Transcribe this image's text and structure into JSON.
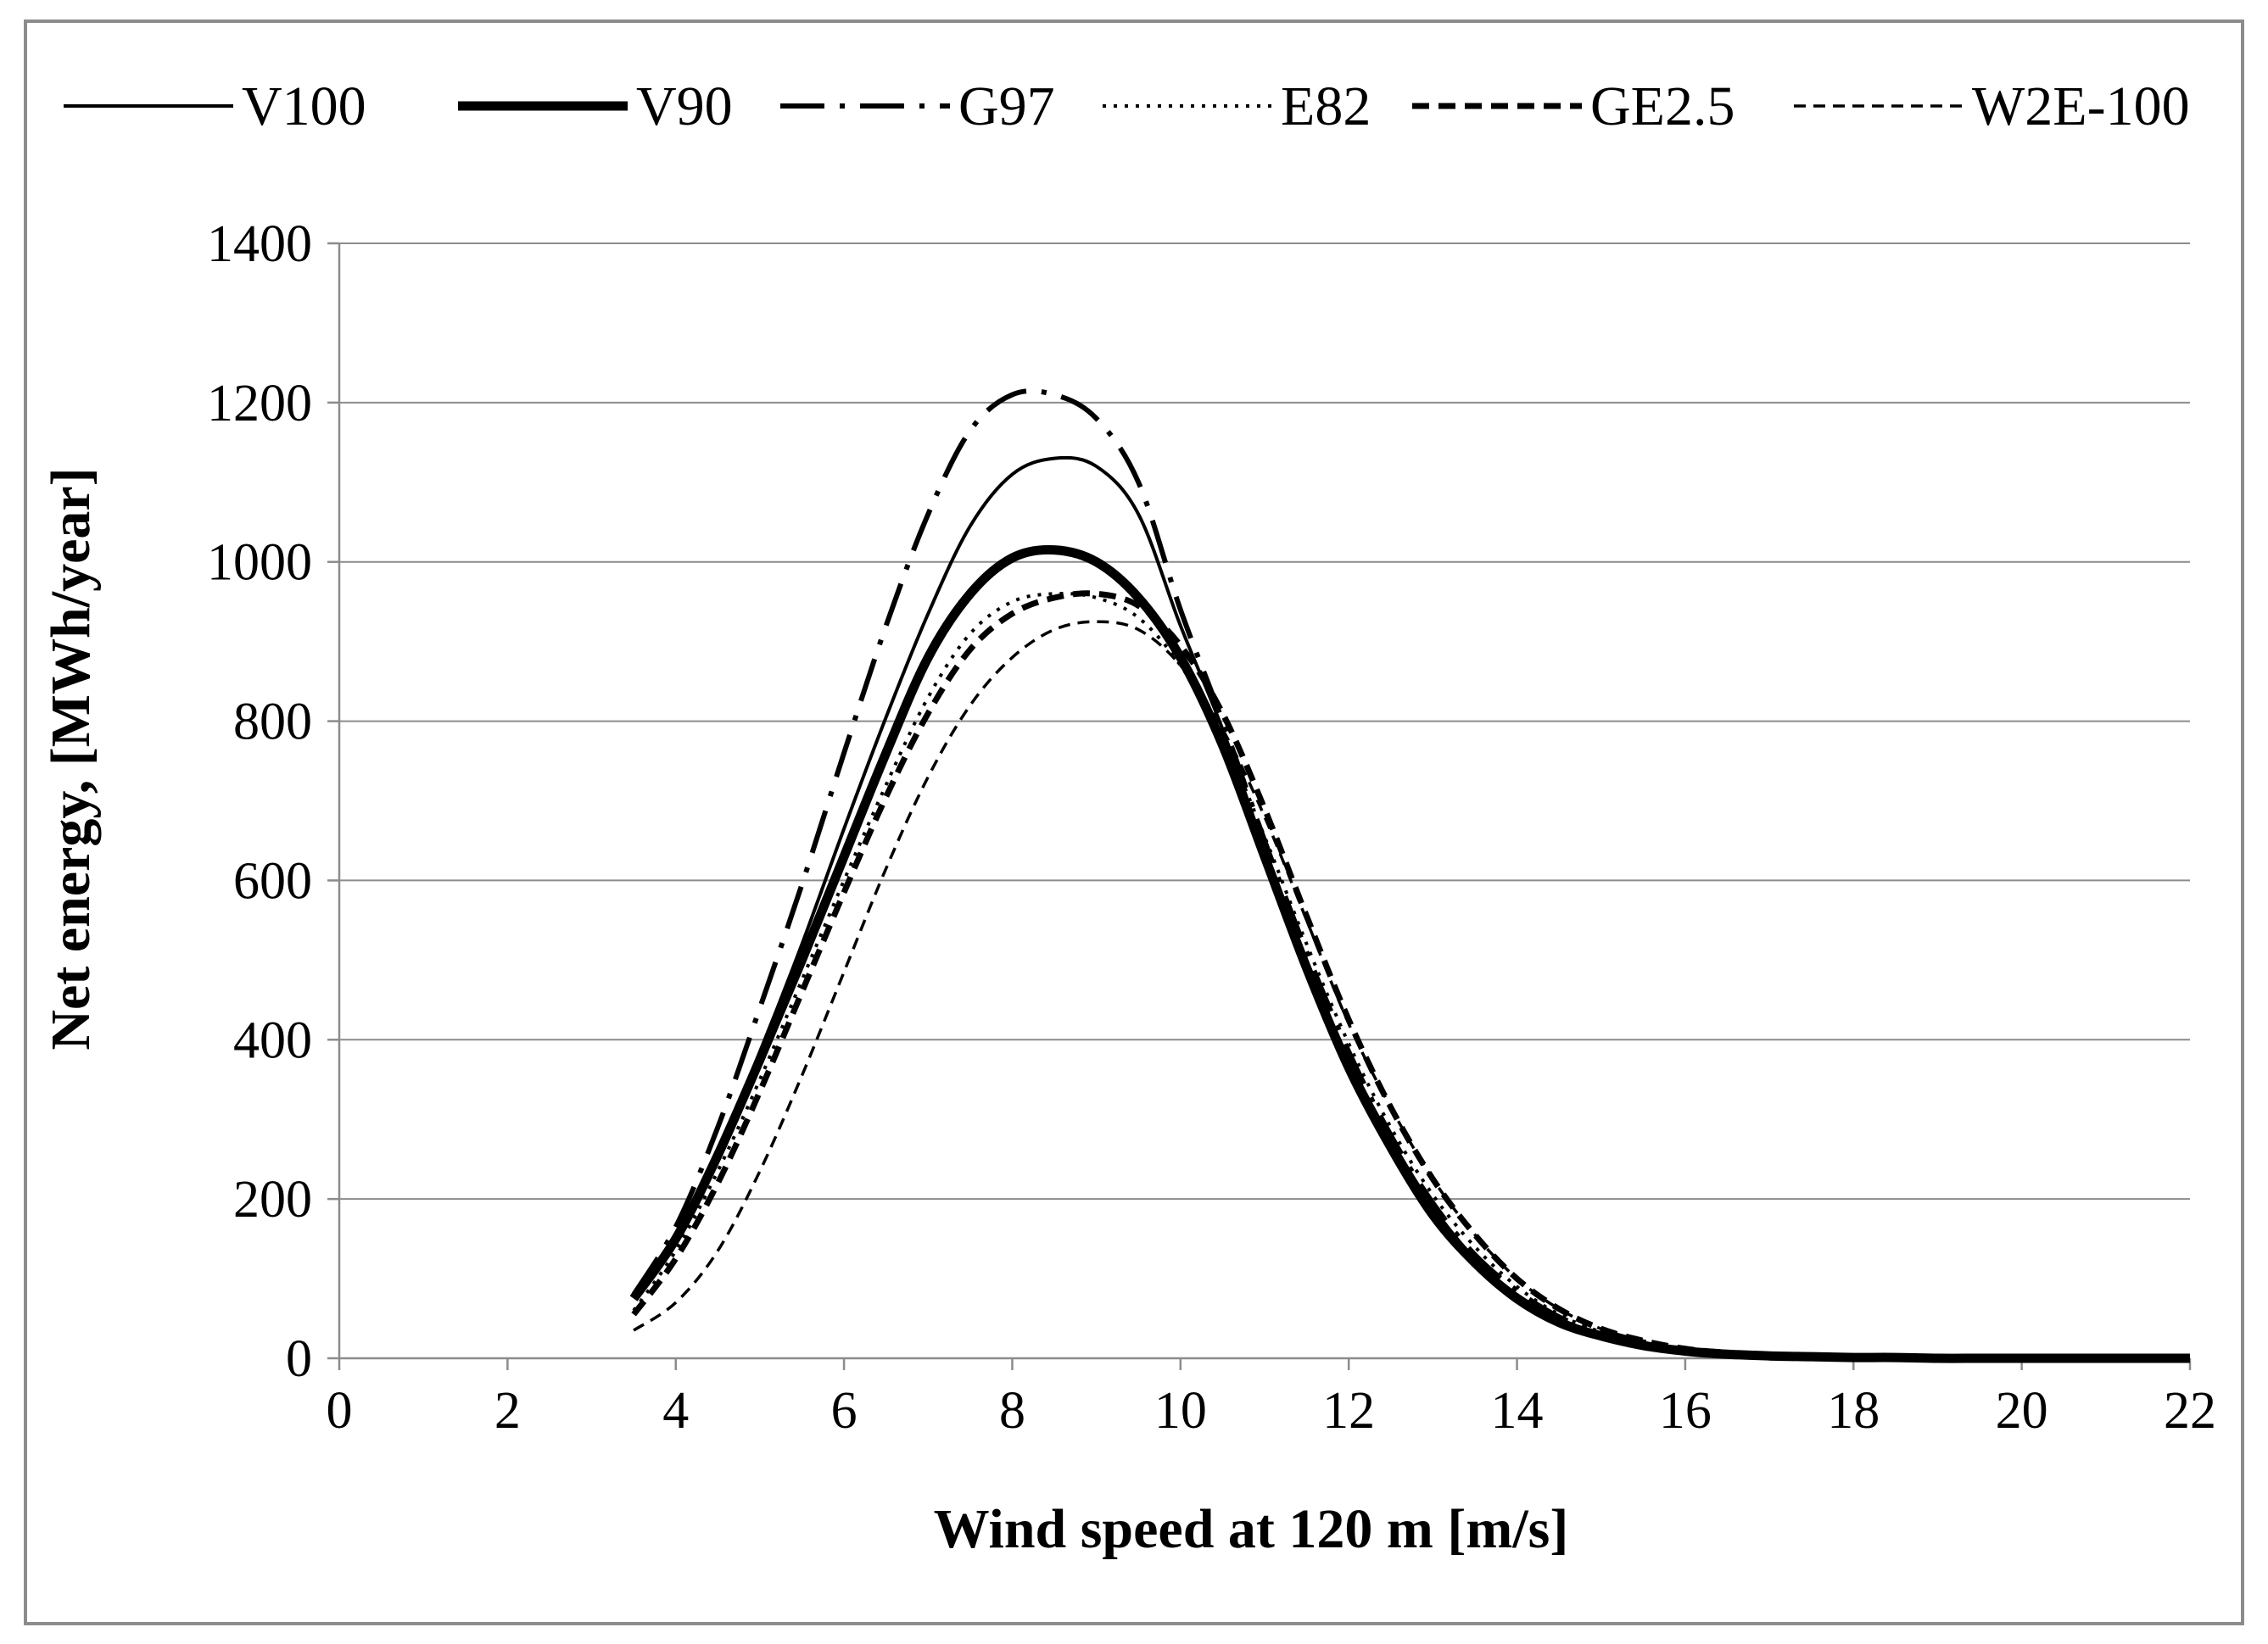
{
  "chart_data": {
    "type": "line",
    "title": "",
    "xlabel": "Wind speed at 120 m [m/s]",
    "ylabel": "Net energy, [MWh/year]",
    "xlim": [
      0,
      22
    ],
    "ylim": [
      0,
      1400
    ],
    "xticks": [
      0,
      2,
      4,
      6,
      8,
      10,
      12,
      14,
      16,
      18,
      20,
      22
    ],
    "yticks": [
      0,
      200,
      400,
      600,
      800,
      1000,
      1200,
      1400
    ],
    "grid": "horizontal",
    "legend_position": "top",
    "x": [
      3.5,
      4,
      4.5,
      5,
      5.5,
      6,
      6.5,
      7,
      7.5,
      8,
      8.5,
      9,
      9.5,
      10,
      10.5,
      11,
      11.5,
      12,
      12.5,
      13,
      13.5,
      14,
      14.5,
      15,
      15.5,
      16,
      16.5,
      17,
      17.5,
      18,
      18.5,
      19,
      19.5,
      20,
      20.5,
      21,
      21.5,
      22
    ],
    "series": [
      {
        "name": "V100",
        "style": "solid",
        "color": "#000000",
        "values": [
          80,
          155,
          260,
          385,
          520,
          665,
          805,
          935,
          1045,
          1110,
          1130,
          1120,
          1060,
          920,
          790,
          640,
          500,
          375,
          275,
          190,
          125,
          80,
          50,
          30,
          18,
          10,
          5,
          3,
          2,
          1,
          1,
          0,
          0,
          0,
          0,
          0,
          0,
          0
        ]
      },
      {
        "name": "V90",
        "style": "bold",
        "color": "#000000",
        "values": [
          75,
          150,
          255,
          375,
          500,
          630,
          760,
          880,
          960,
          1005,
          1015,
          1000,
          955,
          880,
          770,
          630,
          490,
          365,
          265,
          180,
          120,
          75,
          45,
          28,
          16,
          9,
          5,
          3,
          2,
          1,
          1,
          0,
          0,
          0,
          0,
          0,
          0,
          0
        ]
      },
      {
        "name": "G97",
        "style": "dash-dot",
        "color": "#000000",
        "values": [
          80,
          165,
          290,
          440,
          595,
          760,
          920,
          1060,
          1165,
          1210,
          1210,
          1180,
          1100,
          940,
          800,
          650,
          510,
          385,
          280,
          195,
          130,
          85,
          52,
          32,
          19,
          11,
          6,
          3,
          2,
          1,
          1,
          0,
          0,
          0,
          0,
          0,
          0,
          0
        ]
      },
      {
        "name": "E82",
        "style": "dotted",
        "color": "#000000",
        "values": [
          60,
          135,
          235,
          350,
          475,
          600,
          720,
          830,
          910,
          950,
          960,
          955,
          930,
          870,
          780,
          655,
          520,
          395,
          290,
          205,
          140,
          90,
          55,
          33,
          20,
          11,
          6,
          3,
          2,
          1,
          1,
          0,
          0,
          0,
          0,
          0,
          0,
          0
        ]
      },
      {
        "name": "GE2.5",
        "style": "dashed-bold",
        "color": "#000000",
        "values": [
          55,
          125,
          220,
          335,
          460,
          585,
          705,
          810,
          890,
          935,
          955,
          960,
          945,
          895,
          810,
          690,
          555,
          425,
          315,
          225,
          155,
          100,
          62,
          37,
          22,
          12,
          7,
          4,
          2,
          1,
          1,
          0,
          0,
          0,
          0,
          0,
          0,
          0
        ]
      },
      {
        "name": "W2E-100",
        "style": "dashed-thin",
        "color": "#000000",
        "values": [
          35,
          70,
          135,
          235,
          355,
          485,
          615,
          730,
          820,
          880,
          915,
          925,
          915,
          870,
          790,
          680,
          550,
          420,
          315,
          225,
          155,
          100,
          62,
          37,
          22,
          12,
          7,
          4,
          2,
          1,
          1,
          0,
          0,
          0,
          0,
          0,
          0,
          0
        ]
      }
    ]
  }
}
